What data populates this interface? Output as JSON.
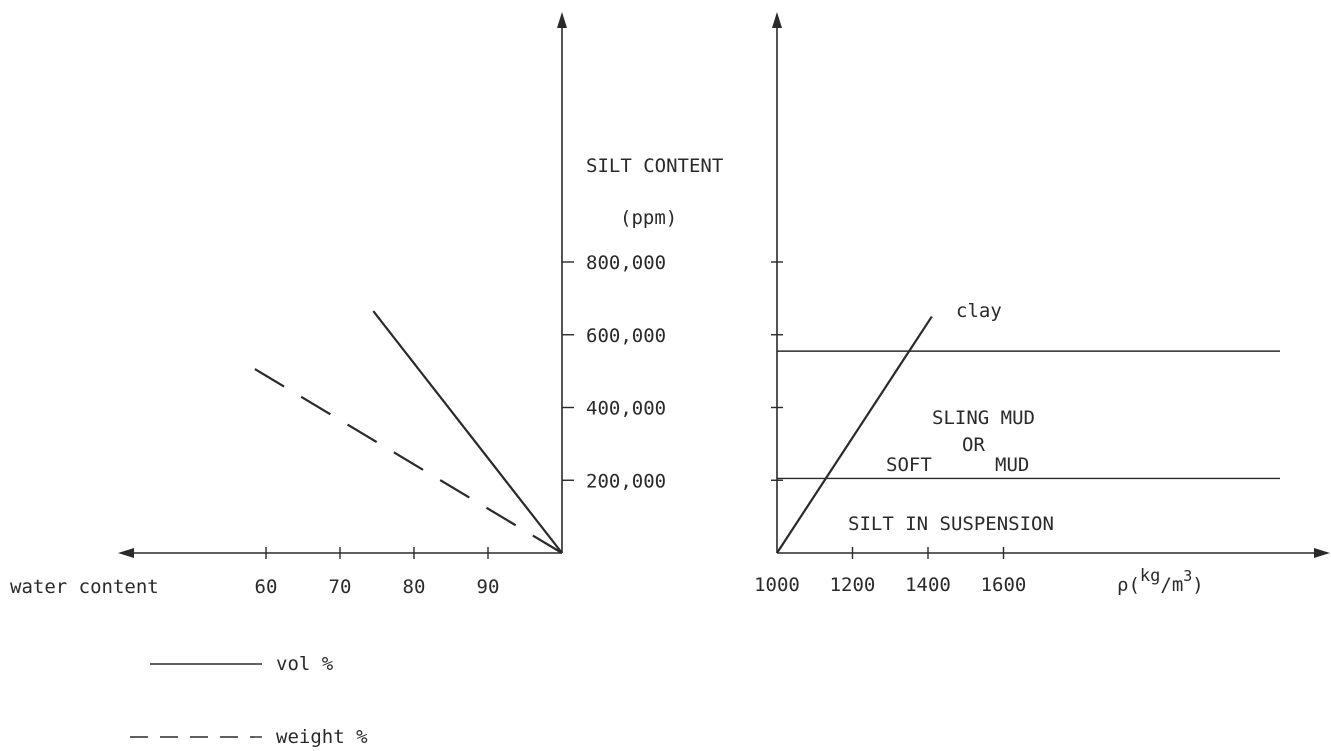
{
  "chart_data": [
    {
      "type": "line",
      "xlabel": "water content",
      "ylabel": "SILT CONTENT",
      "yunit": "(ppm)",
      "x_ticks": [
        "60",
        "70",
        "80",
        "90"
      ],
      "y_ticks": [
        "200,000",
        "400,000",
        "600,000",
        "800,000"
      ],
      "x_direction": "reversed",
      "series": [
        {
          "name": "vol %",
          "style": "solid",
          "x": [
            100,
            74.5
          ],
          "y": [
            0,
            665000
          ]
        },
        {
          "name": "weight %",
          "style": "dashed",
          "x": [
            100,
            56.5
          ],
          "y": [
            0,
            530000
          ]
        }
      ]
    },
    {
      "type": "line",
      "xlabel": "ρ(kg/m3)",
      "xlabel_parts": {
        "prefix": "ρ(",
        "sup": "kg",
        "mid": "/m",
        "sup2": "3",
        "suffix": ")"
      },
      "x_ticks": [
        "1000",
        "1200",
        "1400",
        "1600"
      ],
      "series": [
        {
          "name": "clay",
          "x": [
            1000,
            1410
          ],
          "y": [
            0,
            650000
          ]
        }
      ],
      "hlines": [
        {
          "y": 555000
        },
        {
          "y": 205000
        }
      ],
      "regions": [
        {
          "label_lines": [
            "SLING MUD",
            "OR",
            "SOFT",
            "MUD"
          ]
        },
        {
          "label": "SILT IN SUSPENSION"
        }
      ]
    }
  ],
  "legend": [
    {
      "label": "vol %",
      "style": "solid"
    },
    {
      "label": "weight %",
      "style": "dashed"
    }
  ]
}
